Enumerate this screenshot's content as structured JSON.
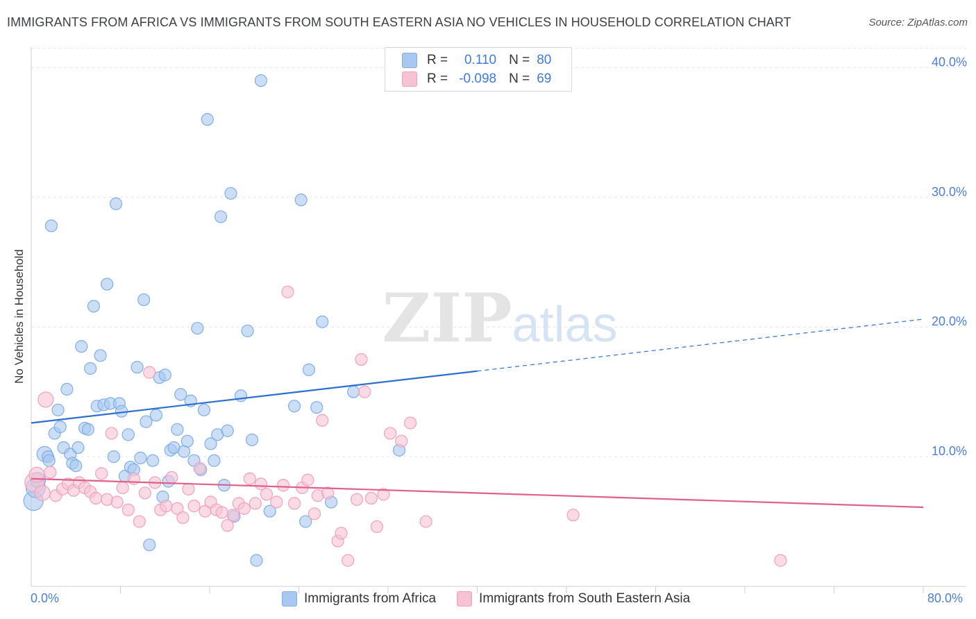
{
  "chart_data": {
    "type": "scatter",
    "title": "IMMIGRANTS FROM AFRICA VS IMMIGRANTS FROM SOUTH EASTERN ASIA NO VEHICLES IN HOUSEHOLD CORRELATION CHART",
    "source": "Source: ZipAtlas.com",
    "xlabel": "",
    "ylabel": "No Vehicles in Household",
    "xlim": [
      0,
      80
    ],
    "ylim": [
      0,
      42
    ],
    "x_tick_labels": [
      "0.0%",
      "80.0%"
    ],
    "y_ticks": [
      10,
      20,
      30,
      40
    ],
    "y_tick_labels": [
      "10.0%",
      "20.0%",
      "30.0%",
      "40.0%"
    ],
    "grid": true,
    "watermark": "ZIPatlas",
    "legend_position": "bottom",
    "stats": [
      {
        "r_label": "R =",
        "r_value": "0.110",
        "n_label": "N =",
        "n_value": "80"
      },
      {
        "r_label": "R =",
        "r_value": "-0.098",
        "n_label": "N =",
        "n_value": 69
      }
    ],
    "series": [
      {
        "name": "Immigrants from Africa",
        "color": "#7eaee8",
        "fill": "#a9c8f0",
        "line_color": "#2b6fcf",
        "trend": {
          "x0": 0,
          "y0": 12.6,
          "x1": 40,
          "y1": 16.6,
          "dash_to_x": 80,
          "dash_to_y": 20.6
        },
        "points": [
          [
            0.2,
            6.6
          ],
          [
            0.4,
            7.6
          ],
          [
            0.6,
            8.2
          ],
          [
            1.2,
            10.2
          ],
          [
            1.5,
            10.0
          ],
          [
            1.6,
            9.7
          ],
          [
            1.8,
            27.8
          ],
          [
            2.1,
            11.8
          ],
          [
            2.4,
            13.6
          ],
          [
            2.6,
            12.3
          ],
          [
            2.9,
            10.7
          ],
          [
            3.2,
            15.2
          ],
          [
            3.5,
            10.2
          ],
          [
            3.7,
            9.5
          ],
          [
            4.0,
            9.3
          ],
          [
            4.2,
            10.7
          ],
          [
            4.5,
            18.5
          ],
          [
            4.8,
            12.2
          ],
          [
            5.1,
            12.1
          ],
          [
            5.3,
            16.8
          ],
          [
            5.6,
            21.6
          ],
          [
            5.9,
            13.9
          ],
          [
            6.2,
            17.8
          ],
          [
            6.5,
            14.0
          ],
          [
            6.8,
            23.3
          ],
          [
            7.1,
            14.1
          ],
          [
            7.4,
            10.0
          ],
          [
            7.6,
            29.5
          ],
          [
            7.9,
            14.1
          ],
          [
            8.1,
            13.5
          ],
          [
            8.4,
            8.5
          ],
          [
            8.7,
            11.7
          ],
          [
            8.9,
            9.2
          ],
          [
            9.2,
            9.0
          ],
          [
            9.5,
            16.9
          ],
          [
            9.8,
            9.9
          ],
          [
            10.1,
            22.1
          ],
          [
            10.3,
            12.7
          ],
          [
            10.6,
            3.2
          ],
          [
            10.9,
            9.7
          ],
          [
            11.2,
            13.2
          ],
          [
            11.5,
            16.1
          ],
          [
            11.8,
            6.9
          ],
          [
            12.0,
            16.3
          ],
          [
            12.3,
            8.1
          ],
          [
            12.5,
            10.5
          ],
          [
            12.8,
            10.7
          ],
          [
            13.1,
            12.1
          ],
          [
            13.4,
            14.8
          ],
          [
            13.7,
            10.4
          ],
          [
            14.0,
            11.2
          ],
          [
            14.3,
            14.3
          ],
          [
            14.6,
            9.7
          ],
          [
            14.9,
            19.9
          ],
          [
            15.2,
            9.0
          ],
          [
            15.5,
            13.6
          ],
          [
            15.8,
            36.0
          ],
          [
            16.1,
            11.0
          ],
          [
            16.4,
            9.7
          ],
          [
            16.7,
            11.7
          ],
          [
            17.0,
            28.5
          ],
          [
            17.3,
            7.8
          ],
          [
            17.6,
            12.0
          ],
          [
            17.9,
            30.3
          ],
          [
            18.2,
            5.4
          ],
          [
            18.8,
            14.7
          ],
          [
            19.4,
            19.7
          ],
          [
            19.8,
            11.3
          ],
          [
            20.2,
            2.0
          ],
          [
            20.6,
            39.0
          ],
          [
            21.4,
            5.8
          ],
          [
            23.6,
            13.9
          ],
          [
            24.2,
            29.8
          ],
          [
            24.6,
            5.0
          ],
          [
            24.9,
            16.7
          ],
          [
            25.6,
            13.8
          ],
          [
            26.1,
            20.4
          ],
          [
            26.9,
            6.5
          ],
          [
            28.9,
            15.0
          ],
          [
            33.0,
            10.5
          ]
        ]
      },
      {
        "name": "Immigrants from South Eastern Asia",
        "color": "#f0a0bd",
        "fill": "#f7c3d4",
        "line_color": "#e0608c",
        "trend": {
          "x0": 0,
          "y0": 8.3,
          "x1": 80,
          "y1": 6.1
        },
        "points": [
          [
            0.3,
            8.0
          ],
          [
            0.5,
            8.6
          ],
          [
            1.0,
            7.2
          ],
          [
            1.3,
            14.4
          ],
          [
            1.7,
            8.8
          ],
          [
            2.2,
            7.0
          ],
          [
            2.8,
            7.5
          ],
          [
            3.3,
            7.9
          ],
          [
            3.8,
            7.4
          ],
          [
            4.3,
            8.0
          ],
          [
            4.8,
            7.6
          ],
          [
            5.3,
            7.3
          ],
          [
            5.8,
            6.8
          ],
          [
            6.3,
            8.7
          ],
          [
            6.8,
            6.7
          ],
          [
            7.2,
            11.8
          ],
          [
            7.7,
            6.5
          ],
          [
            8.2,
            7.6
          ],
          [
            8.7,
            5.9
          ],
          [
            9.2,
            8.3
          ],
          [
            9.7,
            5.0
          ],
          [
            10.2,
            7.2
          ],
          [
            10.6,
            16.5
          ],
          [
            11.1,
            8.0
          ],
          [
            11.6,
            5.9
          ],
          [
            12.1,
            6.2
          ],
          [
            12.6,
            8.4
          ],
          [
            13.1,
            6.0
          ],
          [
            13.6,
            5.3
          ],
          [
            14.1,
            7.5
          ],
          [
            14.6,
            6.2
          ],
          [
            15.1,
            9.1
          ],
          [
            15.6,
            5.8
          ],
          [
            16.1,
            6.5
          ],
          [
            16.6,
            5.9
          ],
          [
            17.1,
            5.7
          ],
          [
            17.6,
            4.7
          ],
          [
            18.1,
            5.5
          ],
          [
            18.6,
            6.4
          ],
          [
            19.1,
            6.0
          ],
          [
            19.6,
            8.3
          ],
          [
            20.1,
            6.4
          ],
          [
            20.6,
            7.9
          ],
          [
            21.1,
            7.1
          ],
          [
            22.0,
            6.5
          ],
          [
            22.6,
            7.8
          ],
          [
            23.0,
            22.7
          ],
          [
            23.6,
            6.4
          ],
          [
            24.3,
            7.6
          ],
          [
            24.8,
            8.2
          ],
          [
            25.4,
            5.6
          ],
          [
            25.7,
            7.0
          ],
          [
            26.1,
            12.8
          ],
          [
            26.6,
            7.2
          ],
          [
            27.5,
            3.5
          ],
          [
            27.8,
            4.1
          ],
          [
            28.4,
            2.0
          ],
          [
            29.2,
            6.7
          ],
          [
            29.6,
            17.5
          ],
          [
            29.9,
            15.0
          ],
          [
            30.5,
            6.8
          ],
          [
            31.0,
            4.6
          ],
          [
            31.6,
            7.1
          ],
          [
            32.2,
            11.8
          ],
          [
            33.2,
            11.2
          ],
          [
            34.0,
            12.6
          ],
          [
            35.4,
            5.0
          ],
          [
            48.6,
            5.5
          ],
          [
            67.2,
            2.0
          ]
        ]
      }
    ]
  }
}
